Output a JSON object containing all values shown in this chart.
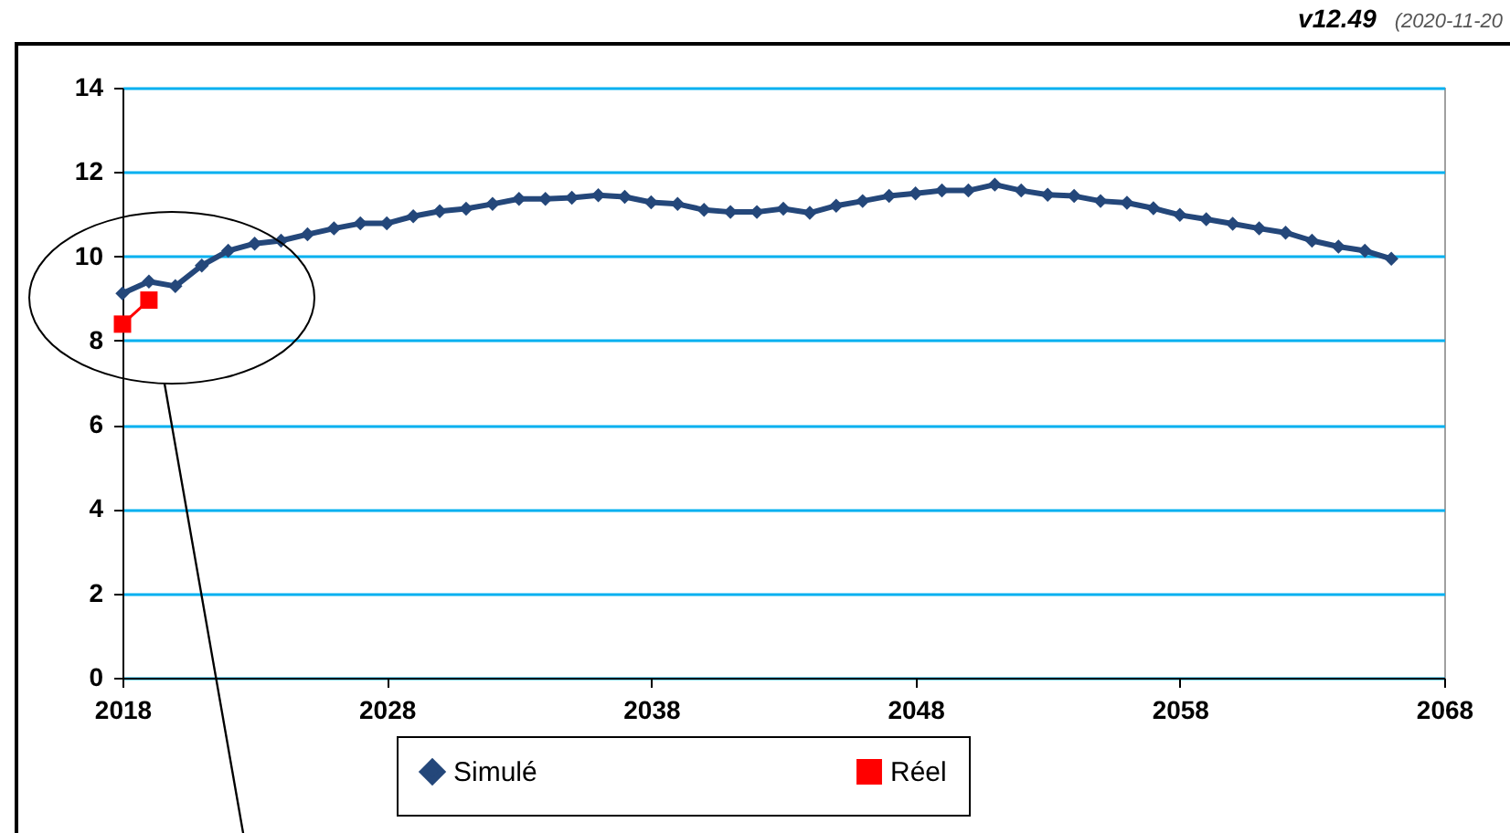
{
  "chart_data": {
    "type": "line",
    "annotations": [
      "v12.49",
      "(2020-11-20"
    ],
    "xlim": [
      2018,
      2068
    ],
    "xticks": [
      2018,
      2028,
      2038,
      2048,
      2058,
      2068
    ],
    "ylim": [
      0,
      14
    ],
    "yticks": [
      0,
      2,
      4,
      6,
      8,
      10,
      12,
      14
    ],
    "grid": "y",
    "legend": "bottom",
    "line_style": "solid",
    "series": [
      {
        "name": "Simulé",
        "color": "#24477a",
        "marker": "diamond",
        "x": [
          2018,
          2019,
          2020,
          2021,
          2022,
          2023,
          2024,
          2025,
          2026,
          2027,
          2028,
          2029,
          2030,
          2031,
          2032,
          2033,
          2034,
          2035,
          2036,
          2037,
          2038,
          2039,
          2040,
          2041,
          2042,
          2043,
          2044,
          2045,
          2046,
          2047,
          2048,
          2049,
          2050,
          2051,
          2052,
          2053,
          2054,
          2055,
          2056,
          2057,
          2058,
          2059,
          2060,
          2061,
          2062,
          2063,
          2064,
          2065,
          2066
        ],
        "values": [
          9.12,
          9.4,
          9.29,
          9.78,
          10.13,
          10.3,
          10.37,
          10.52,
          10.66,
          10.78,
          10.78,
          10.95,
          11.07,
          11.13,
          11.24,
          11.36,
          11.36,
          11.39,
          11.45,
          11.41,
          11.28,
          11.24,
          11.1,
          11.05,
          11.05,
          11.13,
          11.03,
          11.2,
          11.31,
          11.43,
          11.49,
          11.56,
          11.56,
          11.7,
          11.56,
          11.46,
          11.43,
          11.31,
          11.27,
          11.14,
          10.98,
          10.88,
          10.77,
          10.66,
          10.56,
          10.37,
          10.23,
          10.13,
          9.94
        ]
      },
      {
        "name": "Réel",
        "color": "#ff0000",
        "marker": "square",
        "x": [
          2018,
          2019
        ],
        "values": [
          8.39,
          8.96
        ]
      }
    ]
  }
}
